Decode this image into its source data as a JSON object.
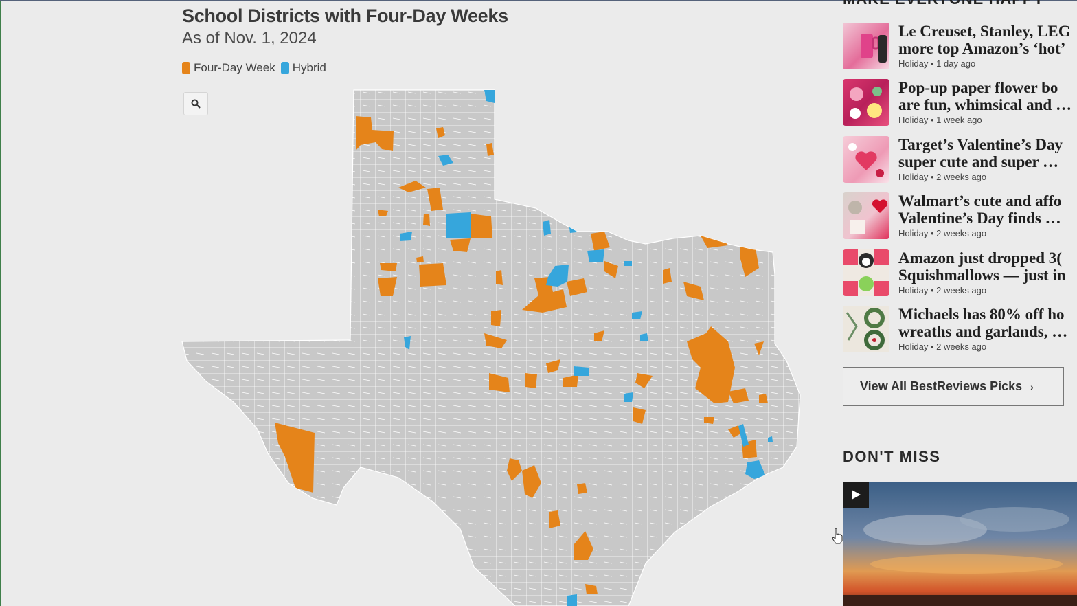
{
  "map": {
    "title": "School Districts with Four-Day Weeks",
    "subtitle": "As of Nov. 1, 2024",
    "legend": [
      {
        "label": "Four-Day Week",
        "color": "#e5841a"
      },
      {
        "label": "Hybrid",
        "color": "#36a6dc"
      }
    ],
    "search_icon": "search-icon"
  },
  "sidebar": {
    "section_heading_partial": "MAKE EVERYONE HAPPY",
    "articles": [
      {
        "headline_line1": "Le Creuset, Stanley, LEG",
        "headline_line2": "more top Amazon’s ‘hot’",
        "category": "Holiday",
        "time": "1 day ago"
      },
      {
        "headline_line1": "Pop-up paper flower bo",
        "headline_line2": "are fun, whimsical and …",
        "category": "Holiday",
        "time": "1 week ago"
      },
      {
        "headline_line1": "Target’s Valentine’s Day",
        "headline_line2": "super cute and super …",
        "category": "Holiday",
        "time": "2 weeks ago"
      },
      {
        "headline_line1": "Walmart’s cute and affo",
        "headline_line2": "Valentine’s Day finds …",
        "category": "Holiday",
        "time": "2 weeks ago"
      },
      {
        "headline_line1": "Amazon just dropped 3(",
        "headline_line2": "Squishmallows — just in",
        "category": "Holiday",
        "time": "2 weeks ago"
      },
      {
        "headline_line1": "Michaels has 80% off ho",
        "headline_line2": "wreaths and garlands, …",
        "category": "Holiday",
        "time": "2 weeks ago"
      }
    ],
    "view_all_label": "View All BestReviews Picks",
    "dont_miss_heading": "DON'T MISS"
  },
  "colors": {
    "four_day": "#e5841a",
    "hybrid": "#36a6dc",
    "district_fill": "#c8c8c8",
    "district_line": "#ffffff",
    "page_background": "#ebebeb"
  }
}
